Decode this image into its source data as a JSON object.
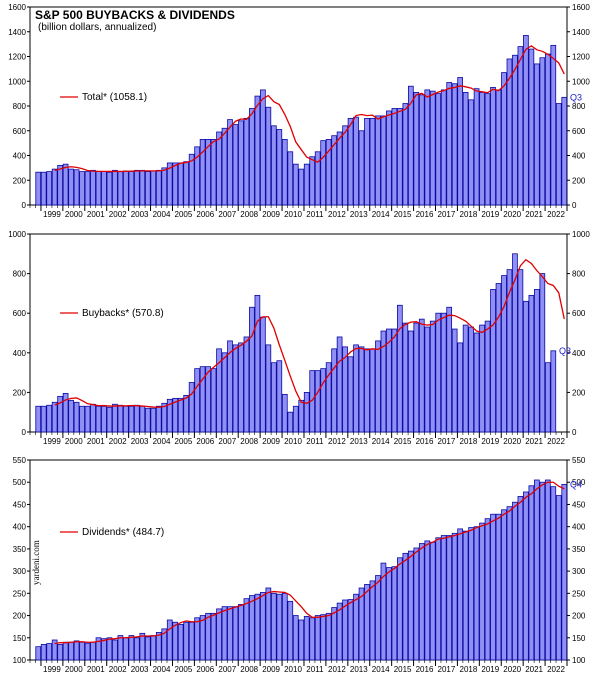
{
  "header": {
    "title": "S&P 500 BUYBACKS & DIVIDENDS",
    "subtitle": "(billion dollars, annualized)"
  },
  "watermark": "yardeni.com",
  "colors": {
    "bar_fill": "#8f8ff5",
    "bar_stroke": "#0a0aa0",
    "ma_line": "#e00000",
    "q_label": "#1a1ad0",
    "axis": "#000000"
  },
  "chart_data": [
    {
      "type": "bar",
      "name": "total",
      "legend": "Total* (1058.1)",
      "end_label": "Q3",
      "ylim": [
        0,
        1600
      ],
      "yticks": [
        0,
        200,
        400,
        600,
        800,
        1000,
        1200,
        1400,
        1600
      ],
      "xlim": [
        1998.5,
        2023.0
      ],
      "xticks": [
        "1999",
        "2000",
        "2001",
        "2002",
        "2003",
        "2004",
        "2005",
        "2006",
        "2007",
        "2008",
        "2009",
        "2010",
        "2011",
        "2012",
        "2013",
        "2014",
        "2015",
        "2016",
        "2017",
        "2018",
        "2019",
        "2020",
        "2021",
        "2022"
      ],
      "quarter_start": 1998.75,
      "values": [
        265,
        265,
        270,
        290,
        320,
        330,
        290,
        285,
        270,
        270,
        280,
        270,
        270,
        265,
        280,
        270,
        275,
        270,
        280,
        280,
        270,
        275,
        280,
        300,
        340,
        340,
        340,
        350,
        410,
        470,
        530,
        530,
        530,
        590,
        620,
        690,
        650,
        680,
        700,
        780,
        880,
        930,
        790,
        640,
        610,
        530,
        430,
        330,
        290,
        330,
        390,
        430,
        520,
        530,
        560,
        590,
        640,
        700,
        710,
        600,
        700,
        700,
        720,
        720,
        760,
        780,
        780,
        820,
        960,
        910,
        890,
        930,
        920,
        900,
        930,
        990,
        980,
        1030,
        910,
        850,
        940,
        910,
        900,
        950,
        930,
        1070,
        1180,
        1210,
        1280,
        1370,
        1260,
        1140,
        1190,
        1220,
        1290,
        820,
        870
      ],
      "ma": [
        null,
        null,
        null,
        280,
        291,
        304,
        309,
        304,
        294,
        279,
        274,
        272,
        272,
        271,
        271,
        271,
        272,
        274,
        275,
        276,
        276,
        276,
        276,
        281,
        298,
        319,
        338,
        344,
        356,
        387,
        428,
        472,
        513,
        533,
        578,
        629,
        677,
        695,
        692,
        737,
        805,
        859,
        884,
        835,
        812,
        732,
        634,
        510,
        448,
        387,
        366,
        347,
        385,
        435,
        487,
        540,
        587,
        649,
        723,
        731,
        722,
        726,
        695,
        712,
        727,
        740,
        757,
        773,
        822,
        890,
        902,
        873,
        893,
        912,
        924,
        942,
        950,
        963,
        955,
        945,
        921,
        915,
        908,
        935,
        925,
        962,
        1024,
        1095,
        1176,
        1258,
        1286,
        1254,
        1242,
        1218,
        1185,
        1148,
        1058
      ]
    },
    {
      "type": "bar",
      "name": "buybacks",
      "legend": "Buybacks* (570.8)",
      "end_label": "Q3",
      "ylim": [
        0,
        1000
      ],
      "yticks": [
        0,
        200,
        400,
        600,
        800,
        1000
      ],
      "xlim": [
        1998.5,
        2023.0
      ],
      "xticks": [
        "1999",
        "2000",
        "2001",
        "2002",
        "2003",
        "2004",
        "2005",
        "2006",
        "2007",
        "2008",
        "2009",
        "2010",
        "2011",
        "2012",
        "2013",
        "2014",
        "2015",
        "2016",
        "2017",
        "2018",
        "2019",
        "2020",
        "2021",
        "2022"
      ],
      "quarter_start": 1998.75,
      "values": [
        130,
        130,
        135,
        150,
        180,
        195,
        160,
        150,
        130,
        130,
        140,
        130,
        130,
        125,
        140,
        135,
        130,
        130,
        135,
        130,
        120,
        120,
        130,
        145,
        165,
        170,
        170,
        185,
        250,
        320,
        330,
        330,
        320,
        420,
        400,
        460,
        440,
        450,
        480,
        630,
        690,
        580,
        440,
        350,
        360,
        190,
        100,
        130,
        160,
        200,
        310,
        310,
        320,
        350,
        420,
        480,
        430,
        380,
        440,
        430,
        420,
        420,
        460,
        510,
        520,
        520,
        640,
        550,
        510,
        550,
        570,
        530,
        560,
        600,
        600,
        630,
        520,
        450,
        540,
        530,
        500,
        540,
        560,
        720,
        750,
        790,
        820,
        900,
        820,
        660,
        690,
        720,
        800,
        350,
        410
      ],
      "ma": [
        null,
        null,
        null,
        136,
        147,
        162,
        170,
        172,
        159,
        143,
        138,
        133,
        134,
        131,
        131,
        133,
        132,
        134,
        133,
        131,
        129,
        126,
        125,
        129,
        140,
        151,
        161,
        172,
        192,
        231,
        266,
        302,
        327,
        350,
        375,
        401,
        422,
        438,
        458,
        485,
        559,
        582,
        582,
        525,
        440,
        362,
        282,
        207,
        150,
        145,
        160,
        200,
        248,
        288,
        323,
        358,
        376,
        404,
        422,
        422,
        415,
        420,
        417,
        432,
        453,
        480,
        522,
        543,
        555,
        557,
        545,
        540,
        543,
        565,
        578,
        590,
        588,
        575,
        560,
        535,
        510,
        503,
        520,
        540,
        580,
        633,
        705,
        768,
        840,
        870,
        851,
        815,
        785,
        750,
        740,
        703,
        571
      ]
    },
    {
      "type": "bar",
      "name": "dividends",
      "legend": "Dividends* (484.7)",
      "end_label": "Q4",
      "ylim": [
        100,
        550
      ],
      "yticks": [
        100,
        150,
        200,
        250,
        300,
        350,
        400,
        450,
        500,
        550
      ],
      "xlim": [
        1998.5,
        2023.0
      ],
      "xticks": [
        "1999",
        "2000",
        "2001",
        "2002",
        "2003",
        "2004",
        "2005",
        "2006",
        "2007",
        "2008",
        "2009",
        "2010",
        "2011",
        "2012",
        "2013",
        "2014",
        "2015",
        "2016",
        "2017",
        "2018",
        "2019",
        "2020",
        "2021",
        "2022"
      ],
      "quarter_start": 1998.75,
      "values": [
        130,
        135,
        137,
        145,
        135,
        140,
        140,
        143,
        140,
        138,
        140,
        150,
        148,
        150,
        145,
        155,
        150,
        155,
        150,
        160,
        152,
        155,
        162,
        170,
        190,
        185,
        180,
        185,
        185,
        195,
        200,
        205,
        205,
        215,
        220,
        220,
        220,
        225,
        238,
        245,
        248,
        252,
        262,
        250,
        248,
        250,
        232,
        200,
        190,
        198,
        195,
        200,
        202,
        205,
        218,
        228,
        235,
        236,
        248,
        262,
        270,
        278,
        290,
        318,
        308,
        310,
        330,
        340,
        345,
        352,
        362,
        368,
        365,
        375,
        380,
        380,
        385,
        395,
        390,
        398,
        400,
        408,
        418,
        428,
        428,
        438,
        445,
        455,
        468,
        478,
        492,
        505,
        500,
        505,
        490,
        470,
        495
      ],
      "ma": [
        null,
        null,
        null,
        137,
        139,
        139,
        140,
        141,
        141,
        140,
        140,
        142,
        144,
        147,
        148,
        150,
        150,
        151,
        152,
        154,
        154,
        154,
        156,
        160,
        170,
        178,
        184,
        188,
        186,
        186,
        189,
        196,
        201,
        206,
        211,
        215,
        219,
        223,
        227,
        232,
        238,
        245,
        252,
        254,
        253,
        252,
        246,
        233,
        220,
        205,
        196,
        196,
        198,
        200,
        206,
        213,
        221,
        229,
        236,
        243,
        254,
        265,
        275,
        288,
        298,
        306,
        316,
        324,
        333,
        343,
        352,
        360,
        365,
        372,
        374,
        377,
        380,
        384,
        388,
        392,
        398,
        402,
        406,
        413,
        419,
        428,
        435,
        446,
        455,
        466,
        474,
        485,
        494,
        500,
        500,
        491,
        485
      ]
    }
  ]
}
